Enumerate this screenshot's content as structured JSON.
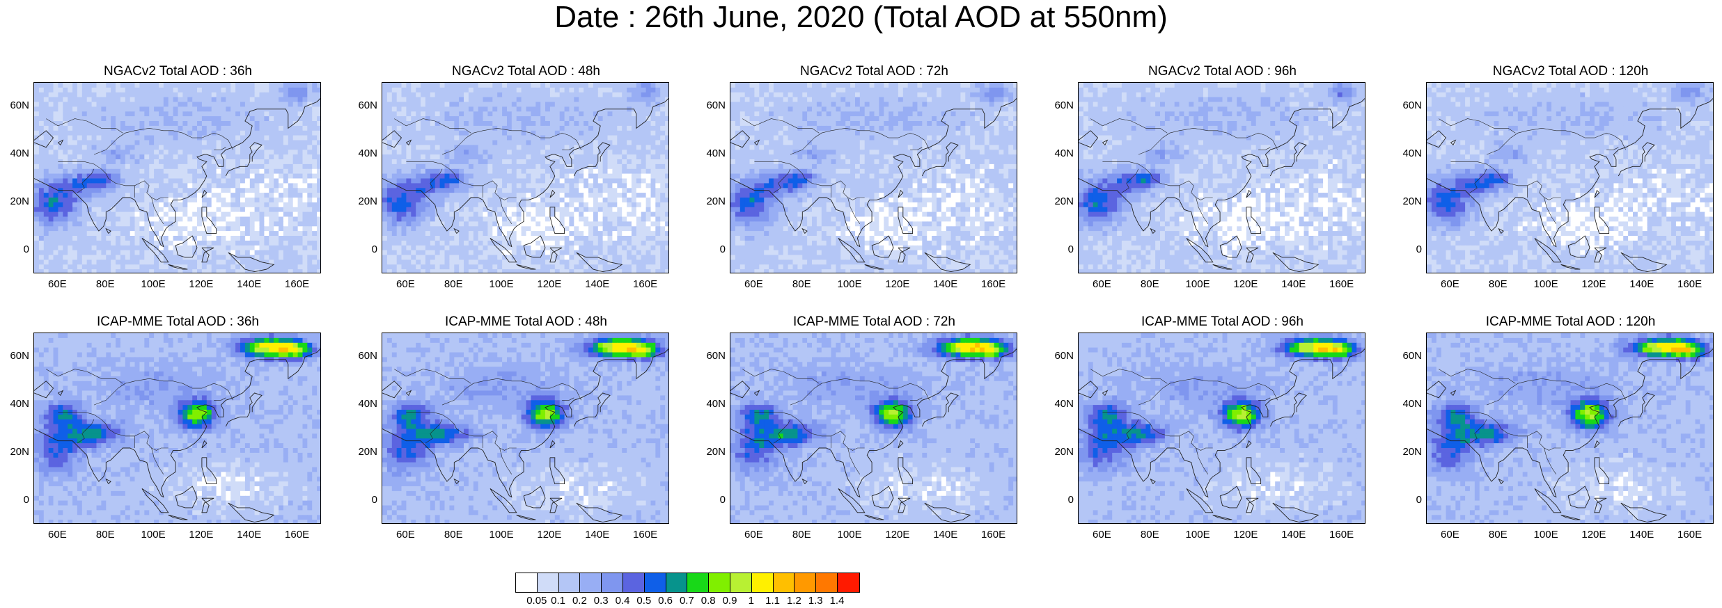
{
  "title": "Date : 26th June, 2020 (Total AOD at 550nm)",
  "panels": [
    {
      "title": "NGACv2 Total AOD : 36h",
      "model": "ngac",
      "row": 0,
      "col": 0
    },
    {
      "title": "NGACv2 Total AOD : 48h",
      "model": "ngac",
      "row": 0,
      "col": 1
    },
    {
      "title": "NGACv2 Total AOD : 72h",
      "model": "ngac",
      "row": 0,
      "col": 2
    },
    {
      "title": "NGACv2 Total AOD : 96h",
      "model": "ngac",
      "row": 0,
      "col": 3
    },
    {
      "title": "NGACv2 Total AOD : 120h",
      "model": "ngac",
      "row": 0,
      "col": 4
    },
    {
      "title": "ICAP-MME Total AOD : 36h",
      "model": "icap",
      "row": 1,
      "col": 0
    },
    {
      "title": "ICAP-MME Total AOD : 48h",
      "model": "icap",
      "row": 1,
      "col": 1
    },
    {
      "title": "ICAP-MME Total AOD : 72h",
      "model": "icap",
      "row": 1,
      "col": 2
    },
    {
      "title": "ICAP-MME Total AOD : 96h",
      "model": "icap",
      "row": 1,
      "col": 3
    },
    {
      "title": "ICAP-MME Total AOD : 120h",
      "model": "icap",
      "row": 1,
      "col": 4
    }
  ],
  "axes": {
    "lat_ticks": [
      "60N",
      "40N",
      "20N",
      "0"
    ],
    "lat_values": [
      60,
      40,
      20,
      0
    ],
    "lon_ticks": [
      "60E",
      "80E",
      "100E",
      "120E",
      "140E",
      "160E"
    ],
    "lon_values": [
      60,
      80,
      100,
      120,
      140,
      160
    ],
    "lon_range": [
      50,
      170
    ],
    "lat_range": [
      -10,
      70
    ]
  },
  "colorbar": {
    "labels": [
      "0.05",
      "0.1",
      "0.2",
      "0.3",
      "0.4",
      "0.5",
      "0.6",
      "0.7",
      "0.8",
      "0.9",
      "1",
      "1.1",
      "1.2",
      "1.3",
      "1.4"
    ],
    "colors": [
      "#ffffff",
      "#d0dcf8",
      "#b4c6f6",
      "#98aef4",
      "#7f96ef",
      "#5b64e0",
      "#0f5fe8",
      "#07938c",
      "#18d818",
      "#80ef00",
      "#b8f033",
      "#fff000",
      "#ffbf00",
      "#ff9900",
      "#ff7800",
      "#ff1a00"
    ]
  }
}
